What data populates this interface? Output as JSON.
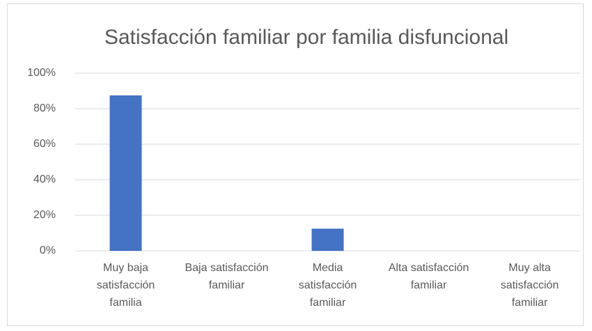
{
  "chart_data": {
    "type": "bar",
    "title": "Satisfacción familiar por familia disfuncional",
    "categories": [
      "Muy baja satisfacción familia",
      "Baja satisfacción familiar",
      "Media satisfacción familiar",
      "Alta satisfacción familiar",
      "Muy alta satisfacción familiar"
    ],
    "values": [
      87.5,
      0,
      12.5,
      0,
      0
    ],
    "color": "#4472c4",
    "ylim": [
      0,
      100
    ],
    "yticks": [
      {
        "value": 0,
        "label": "0%"
      },
      {
        "value": 20,
        "label": "20%"
      },
      {
        "value": 40,
        "label": "40%"
      },
      {
        "value": 60,
        "label": "60%"
      },
      {
        "value": 80,
        "label": "80%"
      },
      {
        "value": 100,
        "label": "100%"
      }
    ],
    "grid": true
  }
}
